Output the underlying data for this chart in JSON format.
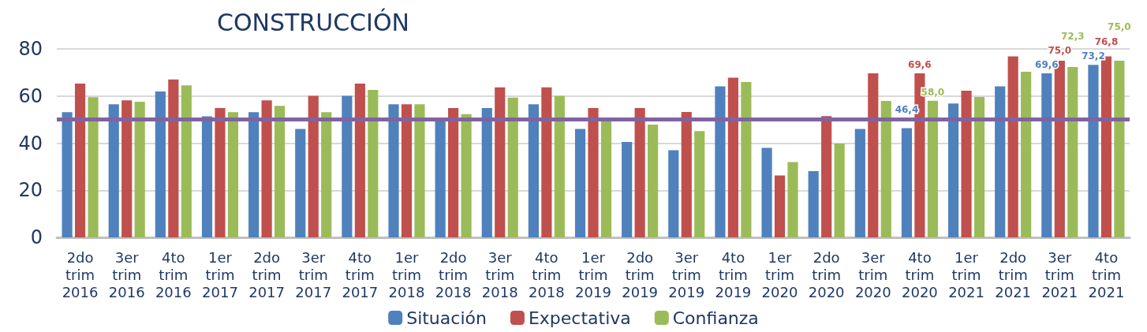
{
  "chart_data": {
    "type": "bar",
    "title": "CONSTRUCCIÓN",
    "categories": [
      "2do\ntrim\n2016",
      "3er\ntrim\n2016",
      "4to\ntrim\n2016",
      "1er\ntrim\n2017",
      "2do\ntrim\n2017",
      "3er\ntrim\n2017",
      "4to\ntrim\n2017",
      "1er\ntrim\n2018",
      "2do\ntrim\n2018",
      "3er\ntrim\n2018",
      "4to\ntrim\n2018",
      "1er\ntrim\n2019",
      "2do\ntrim\n2019",
      "3er\ntrim\n2019",
      "4to\ntrim\n2019",
      "1er\ntrim\n2020",
      "2do\ntrim\n2020",
      "3er\ntrim\n2020",
      "4to\ntrim\n2020",
      "1er\ntrim\n2021",
      "2do\ntrim\n2021",
      "3er\ntrim\n2021",
      "4to\ntrim\n2021"
    ],
    "series": [
      {
        "name": "Situación",
        "color": "#4f81bd",
        "values": [
          53.1,
          56.5,
          61.9,
          51.4,
          53.1,
          46.0,
          60.1,
          56.5,
          50.0,
          54.9,
          56.5,
          46.0,
          40.5,
          37.0,
          64.1,
          38.0,
          28.1,
          46.0,
          46.4,
          56.8,
          64.1,
          69.6,
          73.2
        ],
        "value_labels": [
          null,
          null,
          null,
          null,
          null,
          null,
          null,
          null,
          null,
          null,
          null,
          null,
          null,
          null,
          null,
          null,
          null,
          null,
          "46,4",
          null,
          null,
          "69,6",
          "73,2"
        ]
      },
      {
        "name": "Expectativa",
        "color": "#c0504d",
        "values": [
          65.3,
          58.2,
          67.0,
          54.9,
          58.2,
          60.1,
          65.3,
          56.5,
          54.9,
          63.7,
          63.7,
          54.9,
          54.9,
          53.2,
          67.8,
          26.3,
          51.5,
          69.6,
          69.6,
          62.3,
          76.8,
          75.0,
          76.8
        ],
        "value_labels": [
          null,
          null,
          null,
          null,
          null,
          null,
          null,
          null,
          null,
          null,
          null,
          null,
          null,
          null,
          null,
          null,
          null,
          null,
          "69,6",
          null,
          null,
          "75,0",
          "76,8"
        ]
      },
      {
        "name": "Confianza",
        "color": "#9bbb59",
        "values": [
          59.5,
          57.6,
          64.5,
          53.1,
          55.8,
          53.1,
          62.6,
          56.5,
          52.3,
          59.3,
          60.1,
          49.5,
          47.9,
          45.1,
          65.9,
          32.0,
          39.8,
          57.9,
          58.0,
          59.6,
          70.3,
          72.3,
          75.0
        ],
        "value_labels": [
          null,
          null,
          null,
          null,
          null,
          null,
          null,
          null,
          null,
          null,
          null,
          null,
          null,
          null,
          null,
          null,
          null,
          null,
          "58,0",
          null,
          null,
          "72,3",
          "75,0"
        ]
      }
    ],
    "ylim": [
      0,
      80
    ],
    "yticks": [
      0,
      20,
      40,
      60,
      80
    ],
    "grid": "y",
    "legend": "bottom",
    "ref_lines": [
      {
        "axis": "y",
        "value": 50,
        "color": "#8064a2"
      }
    ]
  }
}
